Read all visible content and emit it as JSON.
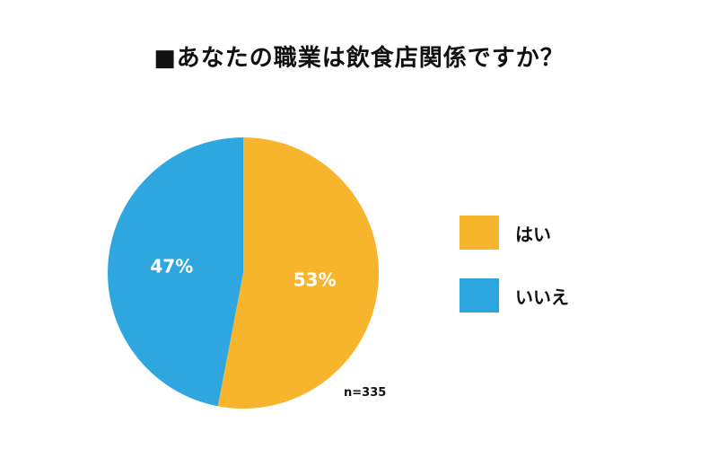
{
  "chart_data": {
    "type": "pie",
    "title": "■あなたの職業は飲食店関係ですか？",
    "categories": [
      "はい",
      "いいえ"
    ],
    "values": [
      53,
      47
    ],
    "data_labels": [
      "53%",
      "47%"
    ],
    "colors": [
      "#F7B52D",
      "#2EA7E0"
    ],
    "legend_position": "right",
    "annotation": "n=335"
  }
}
